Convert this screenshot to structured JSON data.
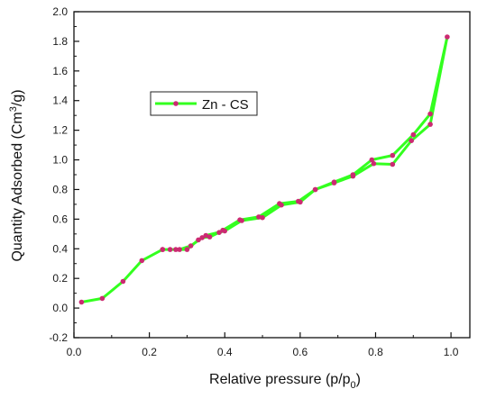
{
  "chart_data": {
    "type": "line",
    "title": "",
    "xlabel": "Relative pressure (p/p0)",
    "xlabel_parts": {
      "main": "Relative pressure (p/p",
      "sub": "0",
      "end": ")"
    },
    "ylabel": "Quantity Adsorbed (Cm3/g)",
    "ylabel_parts": {
      "main": "Quantity Adsorbed (Cm",
      "sup": "3",
      "end": "/g)"
    },
    "xlim": [
      0.0,
      1.05
    ],
    "ylim": [
      -0.2,
      2.0
    ],
    "x_ticks": [
      "0.0",
      "0.2",
      "0.4",
      "0.6",
      "0.8",
      "1.0"
    ],
    "y_ticks": [
      "-0.2",
      "0.0",
      "0.2",
      "0.4",
      "0.6",
      "0.8",
      "1.0",
      "1.2",
      "1.4",
      "1.6",
      "1.8",
      "2.0"
    ],
    "grid": false,
    "legend_position": "upper-left",
    "series": [
      {
        "name": "Zn - CS",
        "line_color": "#33ff1f",
        "marker_color": "#cc2a72",
        "x": [
          0.02,
          0.075,
          0.13,
          0.18,
          0.235,
          0.255,
          0.28,
          0.31,
          0.34,
          0.36,
          0.385,
          0.395,
          0.44,
          0.49,
          0.545,
          0.595,
          0.64,
          0.69,
          0.74,
          0.795,
          0.845,
          0.895,
          0.945,
          0.99,
          0.945,
          0.9,
          0.845,
          0.79,
          0.74,
          0.69,
          0.64,
          0.6,
          0.55,
          0.5,
          0.445,
          0.4,
          0.35,
          0.33,
          0.3,
          0.27,
          0.235
        ],
        "y": [
          0.04,
          0.065,
          0.18,
          0.32,
          0.395,
          0.395,
          0.395,
          0.42,
          0.475,
          0.48,
          0.51,
          0.525,
          0.595,
          0.615,
          0.705,
          0.72,
          0.8,
          0.845,
          0.89,
          0.975,
          0.97,
          1.13,
          1.24,
          1.83,
          1.31,
          1.17,
          1.03,
          1.0,
          0.9,
          0.85,
          0.8,
          0.715,
          0.695,
          0.61,
          0.59,
          0.52,
          0.49,
          0.46,
          0.395,
          0.395,
          0.395
        ]
      }
    ]
  }
}
